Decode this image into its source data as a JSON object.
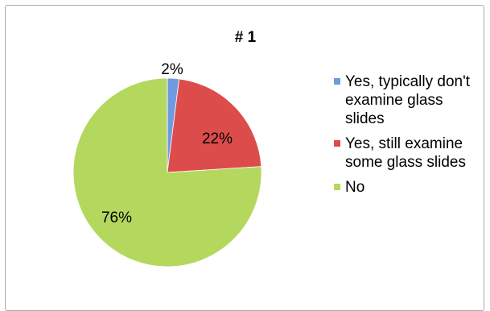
{
  "chart_data": {
    "type": "pie",
    "title": "# 1",
    "categories": [
      "Yes, typically don't examine glass slides",
      "Yes, still examine some glass slides",
      "No"
    ],
    "values": [
      2,
      22,
      76
    ],
    "value_labels": [
      "2%",
      "22%",
      "76%"
    ],
    "colors": [
      "#6f9ae0",
      "#dc4c4a",
      "#b4d85e"
    ],
    "legend_position": "right"
  },
  "legend": {
    "items": [
      {
        "label": "Yes, typically don't examine glass slides",
        "color": "#6f9ae0"
      },
      {
        "label": "Yes, still examine some glass slides",
        "color": "#dc4c4a"
      },
      {
        "label": "No",
        "color": "#b4d85e"
      }
    ]
  }
}
